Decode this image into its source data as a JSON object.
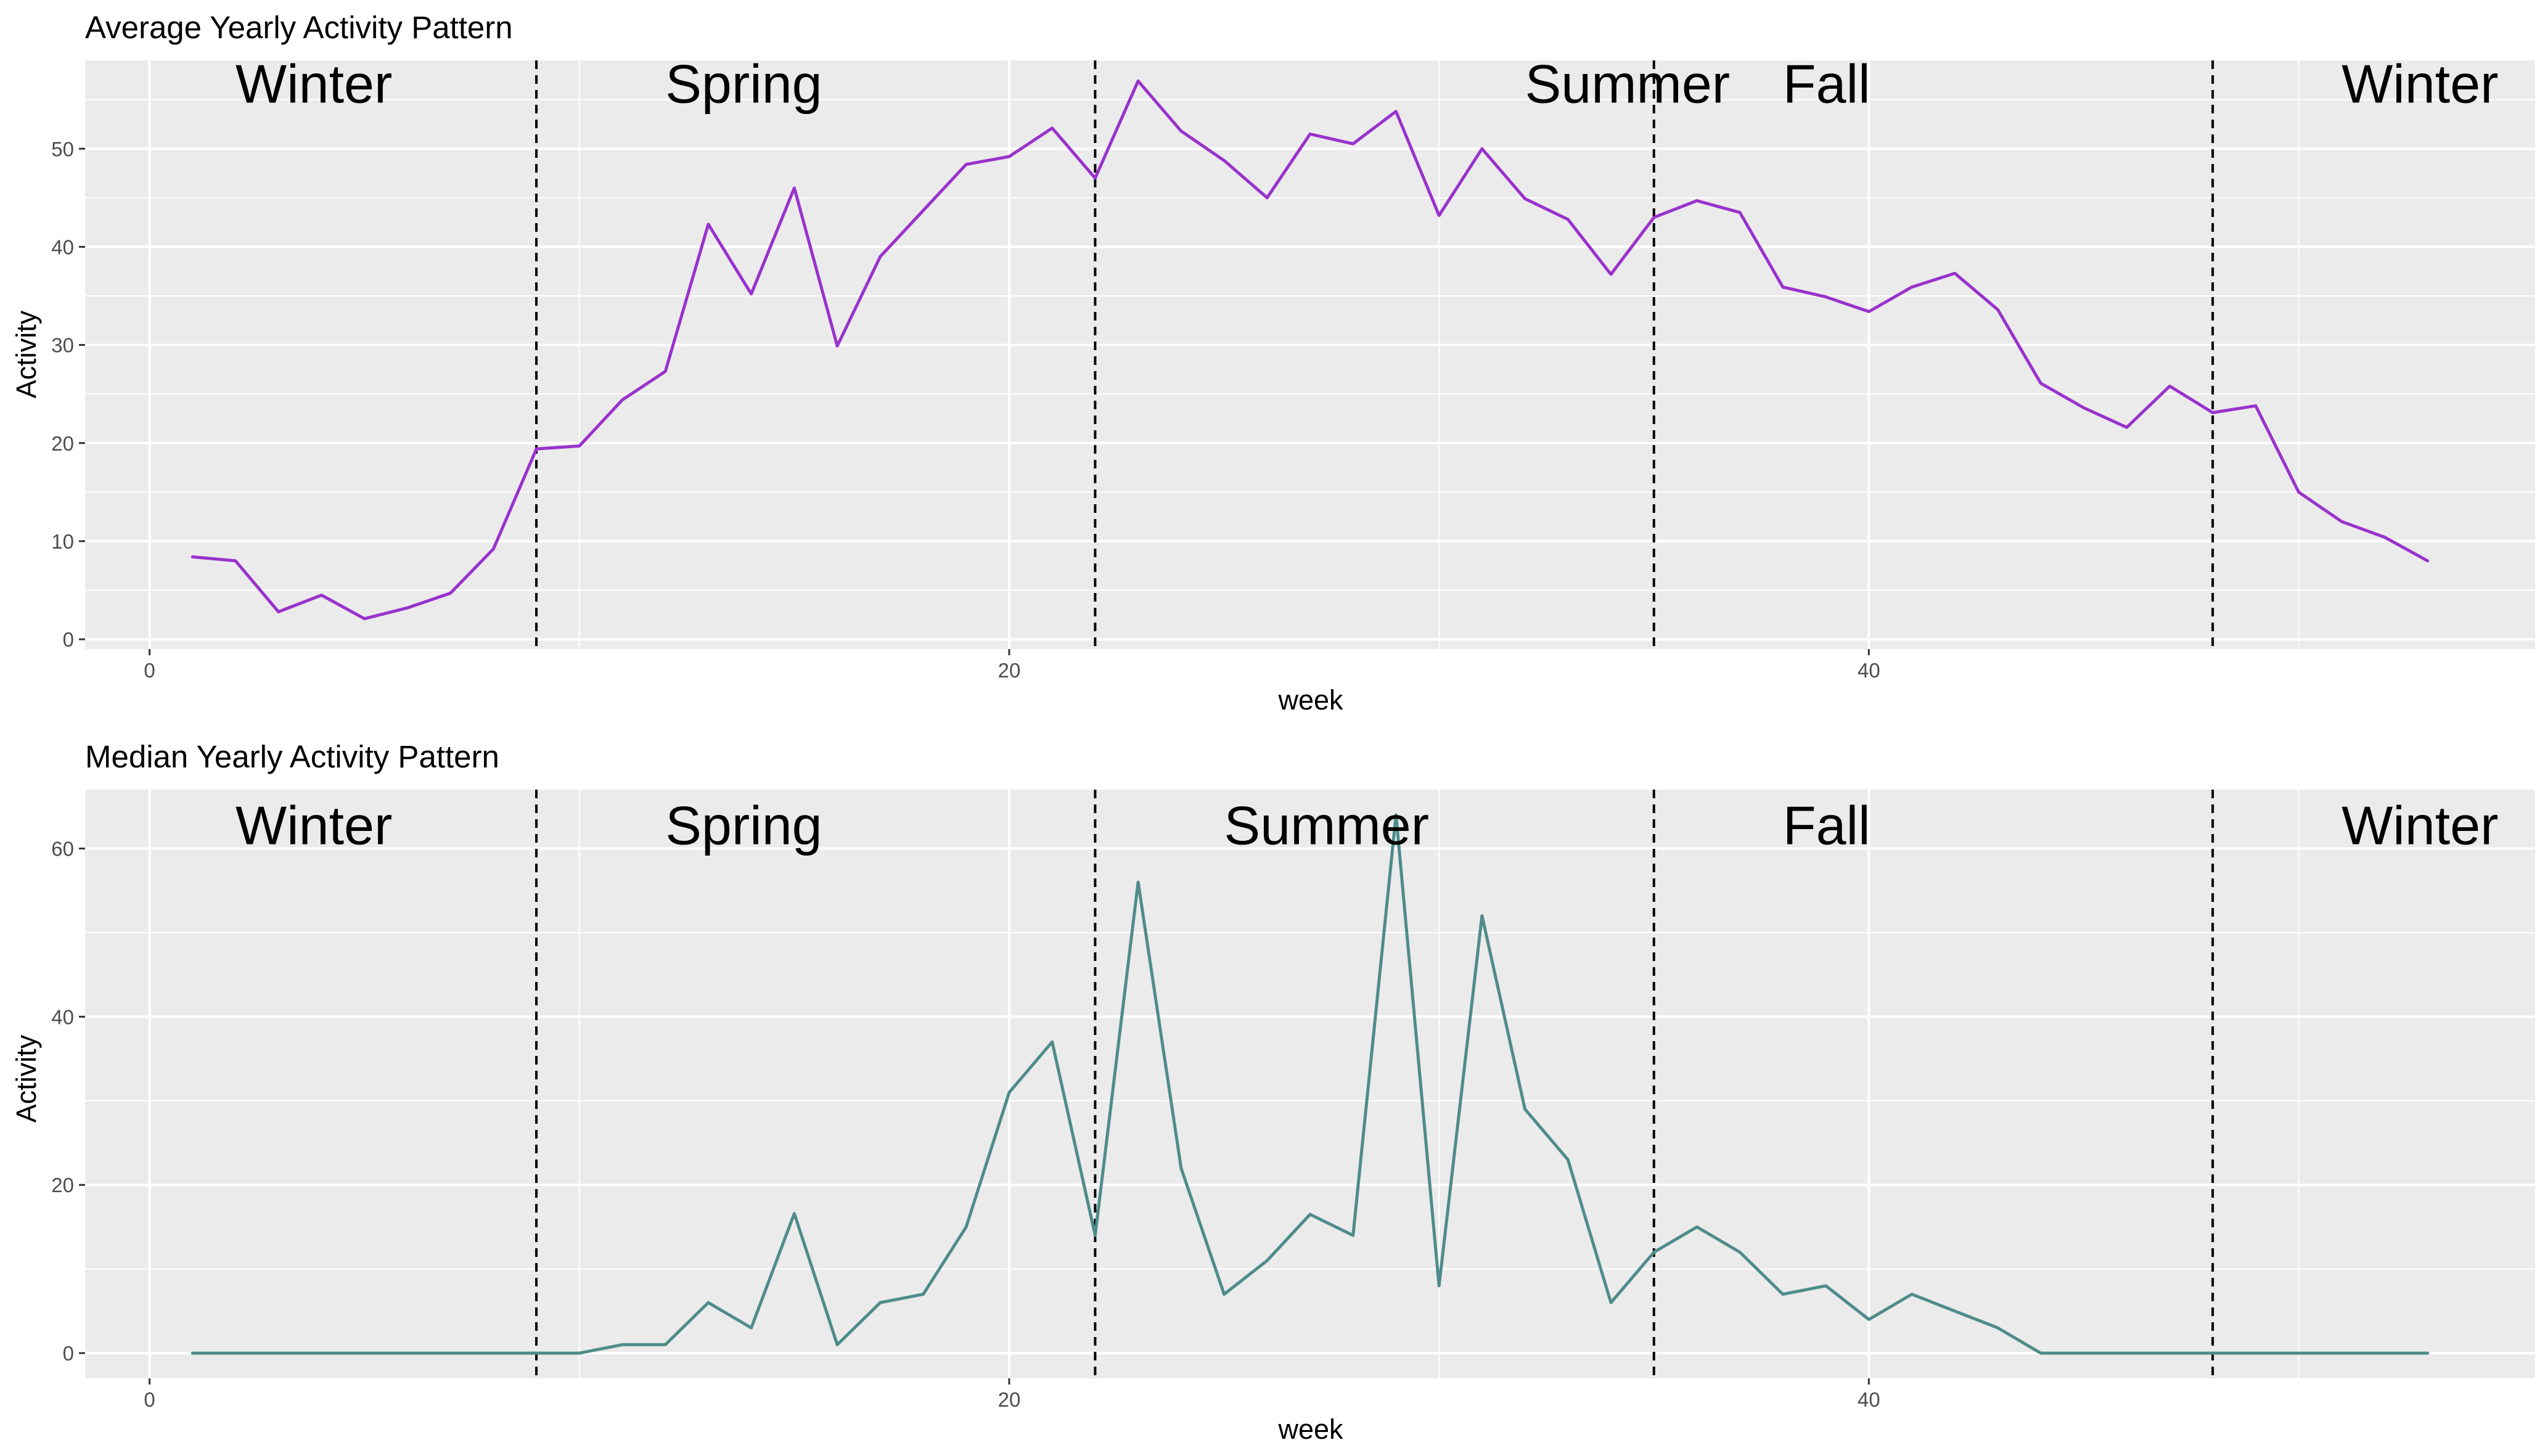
{
  "chart_data": [
    {
      "type": "line",
      "title": "Average Yearly Activity Pattern",
      "xlabel": "week",
      "ylabel": "Activity",
      "xlim": [
        -1.5,
        55.5
      ],
      "ylim": [
        -1,
        59
      ],
      "x_ticks": [
        0,
        20,
        40
      ],
      "x_minor_ticks": [
        10,
        30,
        50
      ],
      "y_ticks": [
        0,
        10,
        20,
        30,
        40,
        50
      ],
      "y_minor_ticks": [
        5,
        15,
        25,
        35,
        45,
        55
      ],
      "grid": true,
      "line_color": "#9932cc",
      "series": [
        {
          "x": [
            1,
            2,
            3,
            4,
            5,
            6,
            7,
            8,
            9,
            10,
            11,
            12,
            13,
            14,
            15,
            16,
            17,
            18,
            19,
            20,
            21,
            22,
            23,
            24,
            25,
            26,
            27,
            28,
            29,
            30,
            31,
            32,
            33,
            34,
            35,
            36,
            37,
            38,
            39,
            40,
            41,
            42,
            43,
            44,
            45,
            46,
            47,
            48,
            49,
            50,
            51,
            52,
            53
          ],
          "values": [
            8.4,
            8,
            2.8,
            4.5,
            2.1,
            3.2,
            4.7,
            9.2,
            19.4,
            19.7,
            24.4,
            27.3,
            42.3,
            35.2,
            46,
            29.9,
            39,
            43.7,
            48.4,
            49.2,
            52.1,
            47,
            56.9,
            51.8,
            48.8,
            45,
            51.5,
            50.5,
            53.8,
            43.2,
            50,
            44.9,
            42.8,
            37.2,
            43,
            44.7,
            43.5,
            35.9,
            34.9,
            33.4,
            35.9,
            37.3,
            33.6,
            26.1,
            23.6,
            21.6,
            25.8,
            23.1,
            23.8,
            15,
            12,
            10.4,
            8
          ]
        }
      ],
      "vlines": [
        9,
        22,
        35,
        48
      ],
      "vline_style": "dashed",
      "annotations": [
        {
          "text": "Winter",
          "x": 2
        },
        {
          "text": "Spring",
          "x": 12
        },
        {
          "text": "Summer",
          "x": 32
        },
        {
          "text": "Fall",
          "x": 38
        },
        {
          "text": "Winter",
          "x": 51
        }
      ],
      "annotation_y": 54.7
    },
    {
      "type": "line",
      "title": "Median Yearly Activity Pattern",
      "xlabel": "week",
      "ylabel": "Activity",
      "xlim": [
        -1.5,
        55.5
      ],
      "ylim": [
        -3,
        67
      ],
      "x_ticks": [
        0,
        20,
        40
      ],
      "x_minor_ticks": [
        10,
        30,
        50
      ],
      "y_ticks": [
        0,
        20,
        40,
        60
      ],
      "y_minor_ticks": [
        10,
        30,
        50
      ],
      "grid": true,
      "line_color": "#4e8c8a",
      "series": [
        {
          "x": [
            1,
            2,
            3,
            4,
            5,
            6,
            7,
            8,
            9,
            10,
            11,
            12,
            13,
            14,
            15,
            16,
            17,
            18,
            19,
            20,
            21,
            22,
            23,
            24,
            25,
            26,
            27,
            28,
            29,
            30,
            31,
            32,
            33,
            34,
            35,
            36,
            37,
            38,
            39,
            40,
            41,
            42,
            43,
            44,
            45,
            46,
            47,
            48,
            49,
            50,
            51,
            52,
            53
          ],
          "values": [
            0,
            0,
            0,
            0,
            0,
            0,
            0,
            0,
            0,
            0,
            1,
            1,
            6,
            3,
            16.6,
            1,
            6,
            7,
            15,
            31,
            37,
            14,
            56,
            22,
            7,
            11,
            16.5,
            14,
            64,
            8,
            52,
            29,
            23,
            6,
            12,
            15,
            12,
            7,
            8,
            4,
            7,
            5,
            3,
            0,
            0,
            0,
            0,
            0,
            0,
            0,
            0,
            0,
            0
          ]
        }
      ],
      "vlines": [
        9,
        22,
        35,
        48
      ],
      "vline_style": "dashed",
      "annotations": [
        {
          "text": "Winter",
          "x": 2
        },
        {
          "text": "Spring",
          "x": 12
        },
        {
          "text": "Summer",
          "x": 25
        },
        {
          "text": "Fall",
          "x": 38
        },
        {
          "text": "Winter",
          "x": 51
        }
      ],
      "annotation_y": 60.5
    }
  ]
}
